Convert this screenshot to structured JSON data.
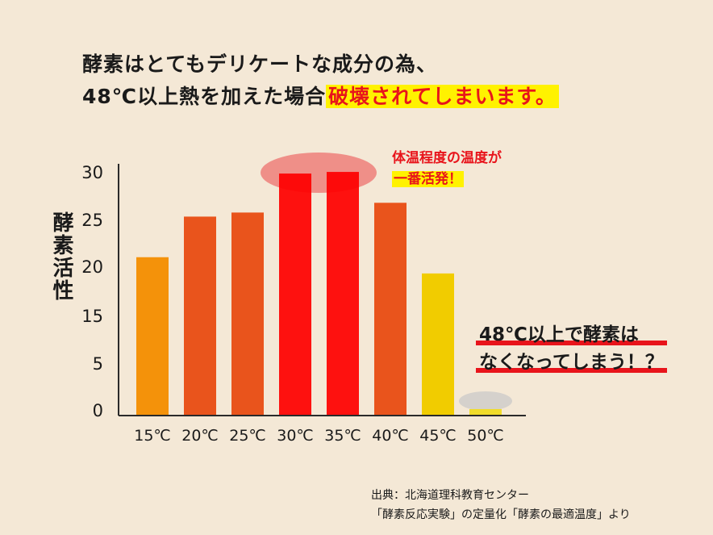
{
  "title": {
    "line1": "酵素はとてもデリケートな成分の為、",
    "line2_plain": "48℃以上熱を加えた場合",
    "line2_highlight": "破壊されてしまいます。"
  },
  "callout_top": {
    "line1": "体温程度の温度が",
    "line2": "一番活発！"
  },
  "callout_bottom": {
    "line1": "48℃以上で酵素は",
    "line2": "なくなってしまう！？"
  },
  "source": {
    "line1": "出典：北海道理科教育センター",
    "line2": "「酵素反応実験」の定量化「酵素の最適温度」より"
  },
  "chart_data": {
    "type": "bar",
    "ylabel": "酵素活性",
    "xlabel": "",
    "categories": [
      "15℃",
      "20℃",
      "25℃",
      "30℃",
      "35℃",
      "40℃",
      "45℃",
      "50℃"
    ],
    "values": [
      19.5,
      24.5,
      25,
      29.8,
      30,
      26.2,
      17.5,
      0.8
    ],
    "y_ticks": [
      "0",
      "5",
      "15",
      "20",
      "25",
      "30"
    ],
    "colors": [
      "#f4920a",
      "#e9541c",
      "#e9541c",
      "#fe0000",
      "#fe0000",
      "#e9541c",
      "#f1cc00",
      "#f1dc2a"
    ],
    "grid": false
  }
}
